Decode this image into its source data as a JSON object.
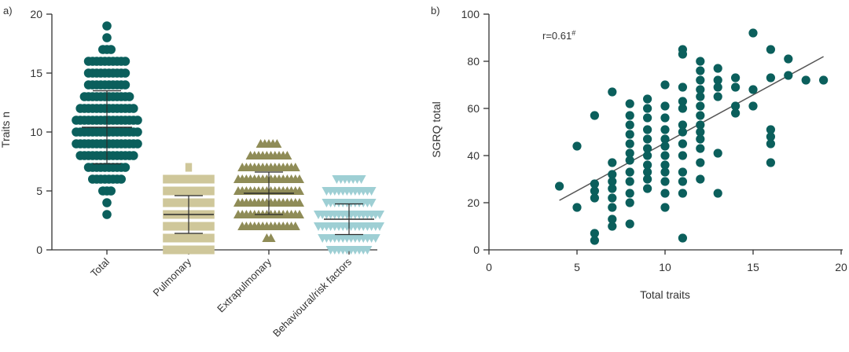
{
  "colors": {
    "total": "#0b5f5c",
    "pulmonary": "#cfc79a",
    "extrapulmonary": "#8f8c57",
    "behavioural": "#9ecfd4",
    "axis": "#333333",
    "errorbar": "#2b2b2b",
    "fitline": "#555555"
  },
  "chart_data": [
    {
      "panel_label": "a)",
      "type": "scatter",
      "subtype": "dot-column-plot",
      "ylabel": "Traits n",
      "ylim": [
        0,
        20
      ],
      "yticks": [
        "0",
        "5",
        "10",
        "15",
        "20"
      ],
      "categories": [
        "Total",
        "Pulmonary",
        "Extrapulmonary",
        "Behavioural/risk factors"
      ],
      "series": [
        {
          "category": "Total",
          "marker": "circle",
          "mean": 10.4,
          "sd_low": 7.3,
          "sd_high": 13.5,
          "counts": [
            {
              "y": 3,
              "n": 1
            },
            {
              "y": 4,
              "n": 1
            },
            {
              "y": 5,
              "n": 3
            },
            {
              "y": 6,
              "n": 8
            },
            {
              "y": 7,
              "n": 10
            },
            {
              "y": 8,
              "n": 14
            },
            {
              "y": 9,
              "n": 16
            },
            {
              "y": 10,
              "n": 16
            },
            {
              "y": 11,
              "n": 16
            },
            {
              "y": 12,
              "n": 14
            },
            {
              "y": 13,
              "n": 12
            },
            {
              "y": 14,
              "n": 10
            },
            {
              "y": 15,
              "n": 10
            },
            {
              "y": 16,
              "n": 10
            },
            {
              "y": 17,
              "n": 3
            },
            {
              "y": 18,
              "n": 1
            },
            {
              "y": 19,
              "n": 1
            }
          ]
        },
        {
          "category": "Pulmonary",
          "marker": "square",
          "mean": 3.0,
          "sd_low": 1.4,
          "sd_high": 4.6,
          "counts": [
            {
              "y": 0,
              "n": 12
            },
            {
              "y": 1,
              "n": 12
            },
            {
              "y": 2,
              "n": 12
            },
            {
              "y": 3,
              "n": 12
            },
            {
              "y": 4,
              "n": 12
            },
            {
              "y": 5,
              "n": 12
            },
            {
              "y": 6,
              "n": 12
            },
            {
              "y": 7,
              "n": 1
            }
          ]
        },
        {
          "category": "Extrapulmonary",
          "marker": "triangle-up",
          "mean": 4.8,
          "sd_low": 3.0,
          "sd_high": 6.6,
          "counts": [
            {
              "y": 1,
              "n": 2
            },
            {
              "y": 2,
              "n": 14
            },
            {
              "y": 3,
              "n": 16
            },
            {
              "y": 4,
              "n": 16
            },
            {
              "y": 5,
              "n": 16
            },
            {
              "y": 6,
              "n": 16
            },
            {
              "y": 7,
              "n": 14
            },
            {
              "y": 8,
              "n": 10
            },
            {
              "y": 9,
              "n": 5
            }
          ]
        },
        {
          "category": "Behavioural/risk factors",
          "marker": "triangle-down",
          "mean": 2.6,
          "sd_low": 1.3,
          "sd_high": 3.9,
          "counts": [
            {
              "y": 0,
              "n": 10
            },
            {
              "y": 1,
              "n": 14
            },
            {
              "y": 2,
              "n": 16
            },
            {
              "y": 3,
              "n": 16
            },
            {
              "y": 4,
              "n": 12
            },
            {
              "y": 5,
              "n": 12
            },
            {
              "y": 6,
              "n": 7
            }
          ]
        }
      ]
    },
    {
      "panel_label": "b)",
      "type": "scatter",
      "xlabel": "Total traits",
      "ylabel": "SGRQ total",
      "xlim": [
        0,
        20
      ],
      "ylim": [
        0,
        100
      ],
      "xticks": [
        "0",
        "5",
        "10",
        "15",
        "20"
      ],
      "yticks": [
        "0",
        "20",
        "40",
        "60",
        "80",
        "100"
      ],
      "annotation": "r=0.61",
      "annotation_sup": "#",
      "fit_line": {
        "x": [
          4,
          19
        ],
        "y": [
          21,
          82
        ]
      },
      "points": [
        [
          4,
          27
        ],
        [
          5,
          44
        ],
        [
          5,
          18
        ],
        [
          6,
          57
        ],
        [
          6,
          28
        ],
        [
          6,
          25
        ],
        [
          6,
          22
        ],
        [
          6,
          7
        ],
        [
          6,
          4
        ],
        [
          7,
          67
        ],
        [
          7,
          37
        ],
        [
          7,
          32
        ],
        [
          7,
          29
        ],
        [
          7,
          26
        ],
        [
          7,
          22
        ],
        [
          7,
          18
        ],
        [
          7,
          13
        ],
        [
          7,
          10
        ],
        [
          8,
          62
        ],
        [
          8,
          57
        ],
        [
          8,
          53
        ],
        [
          8,
          49
        ],
        [
          8,
          45
        ],
        [
          8,
          41
        ],
        [
          8,
          38
        ],
        [
          8,
          33
        ],
        [
          8,
          29
        ],
        [
          8,
          24
        ],
        [
          8,
          20
        ],
        [
          8,
          11
        ],
        [
          9,
          64
        ],
        [
          9,
          60
        ],
        [
          9,
          56
        ],
        [
          9,
          51
        ],
        [
          9,
          47
        ],
        [
          9,
          43
        ],
        [
          9,
          40
        ],
        [
          9,
          36
        ],
        [
          9,
          33
        ],
        [
          9,
          30
        ],
        [
          9,
          26
        ],
        [
          10,
          70
        ],
        [
          10,
          61
        ],
        [
          10,
          56
        ],
        [
          10,
          51
        ],
        [
          10,
          47
        ],
        [
          10,
          44
        ],
        [
          10,
          40
        ],
        [
          10,
          36
        ],
        [
          10,
          33
        ],
        [
          10,
          29
        ],
        [
          10,
          24
        ],
        [
          10,
          18
        ],
        [
          11,
          85
        ],
        [
          11,
          83
        ],
        [
          11,
          69
        ],
        [
          11,
          63
        ],
        [
          11,
          60
        ],
        [
          11,
          53
        ],
        [
          11,
          50
        ],
        [
          11,
          45
        ],
        [
          11,
          40
        ],
        [
          11,
          33
        ],
        [
          11,
          29
        ],
        [
          11,
          24
        ],
        [
          11,
          5
        ],
        [
          12,
          80
        ],
        [
          12,
          76
        ],
        [
          12,
          72
        ],
        [
          12,
          68
        ],
        [
          12,
          65
        ],
        [
          12,
          61
        ],
        [
          12,
          57
        ],
        [
          12,
          53
        ],
        [
          12,
          50
        ],
        [
          12,
          47
        ],
        [
          12,
          43
        ],
        [
          12,
          37
        ],
        [
          12,
          30
        ],
        [
          13,
          77
        ],
        [
          13,
          72
        ],
        [
          13,
          69
        ],
        [
          13,
          65
        ],
        [
          13,
          41
        ],
        [
          13,
          24
        ],
        [
          14,
          73
        ],
        [
          14,
          69
        ],
        [
          14,
          61
        ],
        [
          14,
          58
        ],
        [
          15,
          92
        ],
        [
          15,
          68
        ],
        [
          15,
          61
        ],
        [
          16,
          85
        ],
        [
          16,
          73
        ],
        [
          16,
          51
        ],
        [
          16,
          48
        ],
        [
          16,
          45
        ],
        [
          16,
          37
        ],
        [
          17,
          81
        ],
        [
          17,
          74
        ],
        [
          18,
          72
        ],
        [
          19,
          72
        ]
      ]
    }
  ]
}
